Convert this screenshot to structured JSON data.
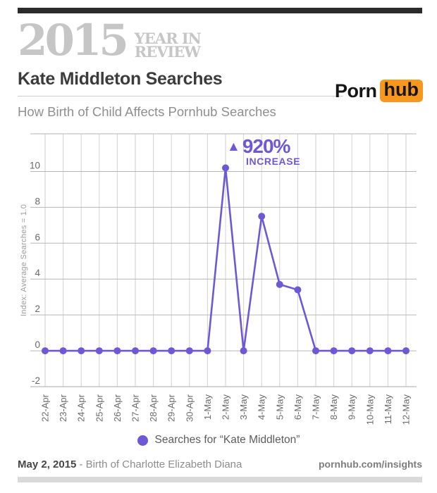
{
  "brand": {
    "year": "2015",
    "year_in_line1": "YEAR IN",
    "year_in_line2": "REVIEW",
    "logo_text_porn": "Porn",
    "logo_text_hub": "hub"
  },
  "header": {
    "title": "Kate Middleton Searches",
    "subtitle": "How Birth of Child Affects Pornhub Searches"
  },
  "footer": {
    "date": "May 2, 2015",
    "event": "- Birth of Charlotte Elizabeth Diana",
    "site": "pornhub.com/insights"
  },
  "colors": {
    "accent_purple": "#6e58d5",
    "brand_orange": "#f7971d",
    "top_bar": "#2b2b2b",
    "bottom_bar": "#d9d9d9",
    "brand_gray": "#c6c6c6"
  },
  "chart_data": {
    "type": "line",
    "title": "Kate Middleton Searches",
    "subtitle": "How Birth of Child Affects Pornhub Searches",
    "ylabel": "Index: Average Searches = 1.0",
    "xlabel": "",
    "categories": [
      "22-Apr",
      "23-Apr",
      "24-Apr",
      "25-Apr",
      "26-Apr",
      "27-Apr",
      "28-Apr",
      "29-Apr",
      "30-Apr",
      "1-May",
      "2-May",
      "3-May",
      "4-May",
      "5-May",
      "6-May",
      "7-May",
      "8-May",
      "9-May",
      "10-May",
      "11-May",
      "12-May"
    ],
    "series": [
      {
        "name": "Searches for “Kate Middleton”",
        "color": "#6e58d5",
        "values": [
          0,
          0,
          0,
          0,
          0,
          0,
          0,
          0,
          0,
          0,
          10.2,
          0,
          7.5,
          3.7,
          3.4,
          0,
          0,
          0,
          0,
          0,
          0
        ]
      }
    ],
    "yticks": [
      -2,
      0,
      2,
      4,
      6,
      8,
      10
    ],
    "ylim": [
      -2,
      12.1
    ],
    "grid": true,
    "legend_position": "bottom",
    "annotation": {
      "arrow": "▲",
      "percent": "920%",
      "label": "INCREASE",
      "at_category": "2-May",
      "peak_value": 10.2
    }
  }
}
